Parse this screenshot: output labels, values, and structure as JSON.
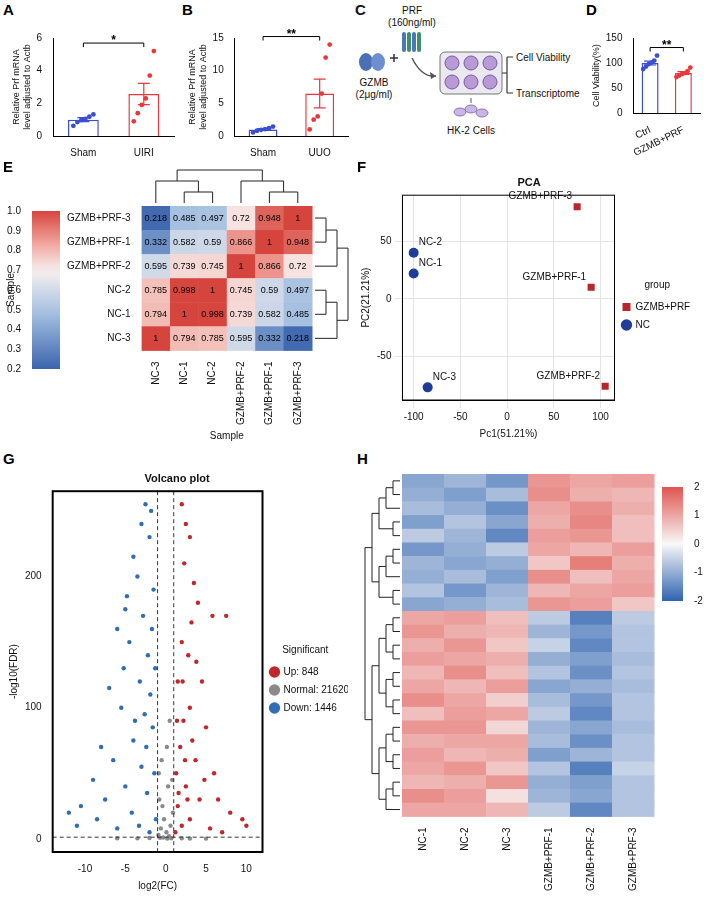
{
  "chart_data": [
    {
      "panel": "A",
      "type": "bar",
      "y_label": "Relative Prf mRNA level adjusted to Actb",
      "categories": [
        "Sham",
        "UIRI"
      ],
      "values": [
        1.0,
        2.57
      ],
      "error": [
        0.12,
        0.65
      ],
      "points": [
        [
          0.62,
          0.85,
          0.98,
          1.05,
          1.18,
          1.32
        ],
        [
          0.9,
          1.4,
          1.9,
          2.3,
          3.7,
          5.2
        ]
      ],
      "colors": [
        "#3a4fd0",
        "#e8383d"
      ],
      "ylim": [
        0,
        6
      ],
      "yticks": [
        0,
        2,
        4,
        6
      ],
      "grid": false,
      "significance": "*"
    },
    {
      "panel": "B",
      "type": "bar",
      "y_label": "Relative Prf mRNA level adjusted to Actb",
      "categories": [
        "Sham",
        "UUO"
      ],
      "values": [
        1.0,
        6.5
      ],
      "error": [
        0.13,
        2.2
      ],
      "points": [
        [
          0.55,
          0.8,
          0.95,
          1.05,
          1.2,
          1.45
        ],
        [
          1.0,
          2.5,
          3.0,
          6.5,
          12.0,
          14.0
        ]
      ],
      "colors": [
        "#3a4fd0",
        "#e8383d"
      ],
      "ylim": [
        0,
        15
      ],
      "yticks": [
        0,
        5,
        10,
        15
      ],
      "grid": false,
      "significance": "**"
    },
    {
      "panel": "D",
      "type": "bar",
      "y_label": "Cell Viability(%)",
      "categories": [
        "Ctrl",
        "GZMB+PRF"
      ],
      "values": [
        100,
        80
      ],
      "error": [
        3.9,
        2.8
      ],
      "points": [
        [
          88,
          93,
          98,
          101,
          105,
          115
        ],
        [
          72,
          75,
          78,
          80,
          84,
          91
        ]
      ],
      "colors": [
        "#3a4fd0",
        "#e8383d"
      ],
      "ylim": [
        0,
        150
      ],
      "yticks": [
        0,
        50,
        100,
        150
      ],
      "grid": false,
      "significance": "**"
    },
    {
      "panel": "E",
      "type": "heatmap",
      "x_label": "Sample",
      "colorbar_label": "Sample",
      "columns": [
        "NC-3",
        "NC-1",
        "NC-2",
        "GZMB+PRF-2",
        "GZMB+PRF-1",
        "GZMB+PRF-3"
      ],
      "rows": [
        "GZMB+PRF-3",
        "GZMB+PRF-1",
        "GZMB+PRF-2",
        "NC-2",
        "NC-1",
        "NC-3"
      ],
      "cells": [
        [
          0.218,
          0.485,
          0.497,
          0.72,
          0.948,
          1
        ],
        [
          0.332,
          0.582,
          0.59,
          0.866,
          1,
          0.948
        ],
        [
          0.595,
          0.739,
          0.745,
          1,
          0.866,
          0.72
        ],
        [
          0.785,
          0.998,
          1,
          0.745,
          0.59,
          0.497
        ],
        [
          0.794,
          1,
          0.998,
          0.739,
          0.582,
          0.485
        ],
        [
          1,
          0.794,
          0.785,
          0.595,
          0.332,
          0.218
        ]
      ],
      "data_labels": true,
      "colorbar_range": [
        0.2,
        1.0
      ],
      "colorbar_ticks": [
        0.2,
        0.3,
        0.4,
        0.5,
        0.6,
        0.7,
        0.8,
        0.9,
        {
          "value": 1,
          "label": "1.0"
        }
      ]
    },
    {
      "panel": "F",
      "type": "scatter",
      "title": "PCA",
      "x_label": "Pc1(51.21%)",
      "y_label": "PC2(21.21%)",
      "series": [
        {
          "name": "GZMB+PRF",
          "color": "#b8262d",
          "marker": "square",
          "labels": [
            "GZMB+PRF-1",
            "GZMB+PRF-2",
            "GZMB+PRF-3"
          ],
          "x": [
            90,
            105,
            75
          ],
          "values": [
            10,
            -76,
            80
          ]
        },
        {
          "name": "NC",
          "color": "#1f3c99",
          "marker": "circle",
          "labels": [
            "NC-1",
            "NC-2",
            "NC-3"
          ],
          "x": [
            -100,
            -100,
            -85
          ],
          "values": [
            22,
            40,
            -77
          ]
        }
      ],
      "xlim": [
        -112,
        115
      ],
      "ylim": [
        -88,
        90
      ],
      "xticks": [
        -100,
        -50,
        0,
        50,
        100
      ],
      "yticks": [
        -50,
        0,
        50
      ],
      "grid": true,
      "legend": "right",
      "legend_title": "group"
    },
    {
      "panel": "G",
      "type": "scatter",
      "title": "Volcano plot",
      "x_label": "log2(FC)",
      "y_label": "-log10(FDR)",
      "series": [
        {
          "name": "Up: 848",
          "color": "#c0272d",
          "marker": "circle",
          "x": [
            2,
            2.5,
            3,
            2.3,
            3.5,
            4,
            3.2,
            5.8,
            7.5,
            2,
            2.8,
            4.5,
            1.5,
            3,
            2.2,
            5,
            1.8,
            3.7,
            6,
            1.3,
            2.5,
            4.2,
            8,
            9.5,
            1.5,
            3,
            2,
            5.5,
            1.2,
            7,
            10,
            2.7,
            1.6,
            3.3,
            4.8,
            2.1,
            6.5,
            1.4,
            2.4,
            3.8
          ],
          "values": [
            255,
            240,
            230,
            210,
            195,
            180,
            165,
            170,
            170,
            150,
            140,
            120,
            120,
            100,
            90,
            85,
            70,
            60,
            50,
            50,
            40,
            30,
            20,
            15,
            25,
            15,
            10,
            8,
            5,
            5,
            10,
            30,
            35,
            75,
            45,
            120,
            30,
            90,
            60,
            135
          ]
        },
        {
          "name": "Normal: 21620",
          "color": "#8a8a8a",
          "marker": "circle",
          "x": [
            0.5,
            -0.5,
            0.3,
            -0.8,
            0.9,
            -0.2,
            0.6,
            -0.6,
            0.1,
            -0.9,
            0.4,
            -0.3,
            0.7,
            -0.7,
            0.2,
            2,
            -2,
            3,
            -3.5,
            5,
            -6,
            0.8,
            -0.4,
            0.15,
            -0.85
          ],
          "values": [
            90,
            60,
            40,
            30,
            20,
            15,
            10,
            8,
            5,
            3,
            2,
            1,
            0.5,
            0.8,
            0.3,
            0.5,
            0.7,
            0.3,
            0.4,
            0.2,
            0.5,
            45,
            25,
            70,
            50
          ]
        },
        {
          "name": "Down: 1446",
          "color": "#2f6db5",
          "marker": "circle",
          "x": [
            -2.5,
            -1.8,
            -3,
            -2,
            -4,
            -3.5,
            -1.5,
            -5,
            -2.8,
            -6,
            -4.5,
            -2.2,
            -1.3,
            -7,
            -3.2,
            -5.5,
            -2.6,
            -1.6,
            -8,
            -4,
            -6.5,
            -3,
            -1.4,
            -9,
            -5,
            -2.3,
            -10.5,
            -7.5,
            -12,
            -4.2,
            -1.2,
            -3.3,
            -6,
            -2,
            -11,
            -8.5,
            -1.9,
            -3.8,
            -2.4,
            -5.2,
            -1.7,
            -4.8
          ],
          "values": [
            255,
            250,
            240,
            230,
            215,
            200,
            190,
            175,
            170,
            160,
            150,
            140,
            130,
            115,
            120,
            100,
            95,
            85,
            70,
            75,
            60,
            55,
            50,
            45,
            40,
            35,
            25,
            30,
            20,
            20,
            15,
            10,
            8,
            5,
            10,
            15,
            110,
            90,
            70,
            130,
            160,
            185
          ]
        }
      ],
      "threshold_lines": {
        "x": [
          -1,
          1
        ],
        "y": [
          1.3
        ]
      },
      "xlim": [
        -14,
        12
      ],
      "ylim": [
        -10,
        265
      ],
      "xticks": [
        -10,
        -5,
        0,
        5,
        10
      ],
      "yticks": [
        0,
        100,
        200
      ],
      "grid": false,
      "legend": "right",
      "legend_title": "Significant"
    },
    {
      "panel": "H",
      "type": "heatmap",
      "columns": [
        "NC-1",
        "NC-2",
        "NC-3",
        "GZMB+PRF-1",
        "GZMB+PRF-2",
        "GZMB+PRF-3"
      ],
      "cells": [
        [
          -1.1,
          -0.9,
          -1.3,
          1.2,
          1.0,
          1.1
        ],
        [
          -1.0,
          -1.2,
          -0.8,
          1.3,
          0.9,
          0.8
        ],
        [
          -0.8,
          -1.0,
          -1.4,
          1.0,
          1.3,
          0.9
        ],
        [
          -1.2,
          -0.7,
          -1.1,
          0.9,
          1.4,
          0.7
        ],
        [
          -0.6,
          -0.9,
          -1.5,
          1.1,
          1.2,
          0.7
        ],
        [
          -1.3,
          -1.0,
          -0.6,
          1.0,
          0.8,
          1.1
        ],
        [
          -0.9,
          -1.1,
          -1.0,
          0.6,
          1.5,
          0.9
        ],
        [
          -1.0,
          -0.8,
          -1.2,
          1.3,
          0.7,
          1.0
        ],
        [
          -0.7,
          -1.3,
          -0.9,
          0.8,
          1.0,
          1.1
        ],
        [
          -1.1,
          -1.0,
          -0.8,
          1.2,
          1.1,
          0.6
        ],
        [
          1.0,
          1.1,
          0.7,
          -0.6,
          -1.6,
          -0.6
        ],
        [
          1.2,
          0.9,
          0.8,
          -0.9,
          -1.3,
          -0.7
        ],
        [
          0.9,
          1.2,
          0.6,
          -0.5,
          -1.5,
          -0.7
        ],
        [
          1.1,
          1.0,
          0.9,
          -1.0,
          -1.2,
          -0.8
        ],
        [
          0.8,
          1.3,
          0.7,
          -0.7,
          -1.4,
          -0.7
        ],
        [
          1.0,
          0.8,
          1.1,
          -1.1,
          -1.0,
          -0.8
        ],
        [
          1.3,
          1.0,
          0.5,
          -0.8,
          -1.3,
          -0.7
        ],
        [
          0.7,
          1.1,
          1.0,
          -0.6,
          -1.5,
          -0.7
        ],
        [
          1.2,
          1.2,
          0.4,
          -0.9,
          -1.1,
          -0.8
        ],
        [
          0.9,
          1.0,
          1.0,
          -0.8,
          -1.4,
          -0.7
        ],
        [
          1.1,
          0.8,
          0.9,
          -1.2,
          -0.9,
          -0.7
        ],
        [
          1.0,
          1.2,
          0.6,
          -0.7,
          -1.6,
          -0.5
        ],
        [
          0.8,
          0.9,
          1.2,
          -1.0,
          -1.2,
          -0.7
        ],
        [
          1.3,
          1.1,
          0.3,
          -0.9,
          -1.1,
          -0.7
        ],
        [
          1.0,
          1.0,
          0.8,
          -0.6,
          -1.5,
          -0.7
        ]
      ],
      "colorbar_range": [
        -2,
        2
      ],
      "colorbar_ticks": [
        -2,
        -1,
        0,
        1,
        2
      ]
    }
  ],
  "diagram": {
    "panel": "C",
    "prf": "PRF",
    "prf_conc": "(160ng/ml)",
    "gzmb": "GZMB",
    "gzmb_conc": "(2μg/ml)",
    "cells": "HK-2 Cells",
    "outputs": [
      "Cell Viability",
      "Transcriptome"
    ]
  }
}
